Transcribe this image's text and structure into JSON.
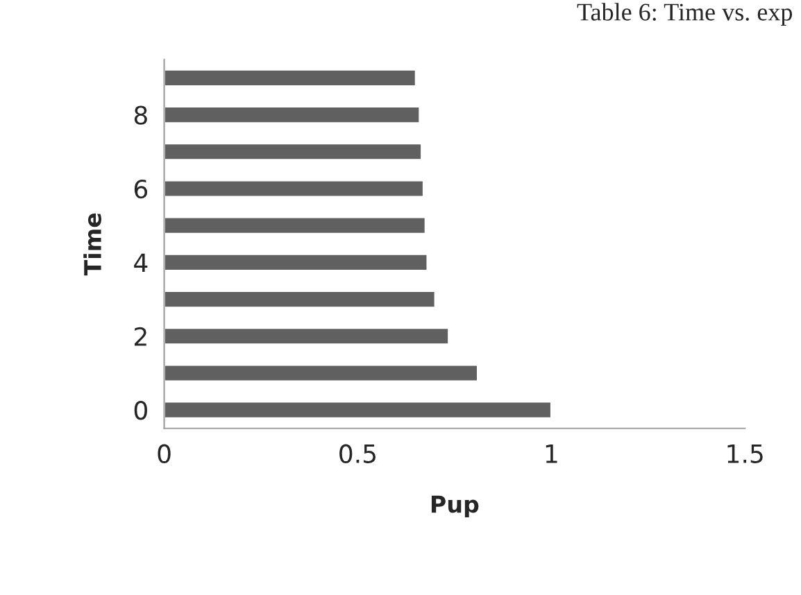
{
  "chart_data": {
    "type": "bar",
    "orientation": "horizontal",
    "title": "Table 6: Time vs. exp",
    "xlabel": "Pup",
    "ylabel": "Time",
    "categories": [
      null,
      "8",
      null,
      "6",
      null,
      "4",
      null,
      "2",
      null,
      "0"
    ],
    "series": [
      {
        "color": "#606060",
        "values": [
          0.65,
          0.66,
          0.665,
          0.67,
          0.675,
          0.68,
          0.7,
          0.735,
          0.81,
          1.0
        ]
      }
    ],
    "xlim": [
      0,
      1.5
    ],
    "xticks": [
      0,
      0.5,
      1,
      1.5
    ],
    "grid": false,
    "legend": false
  }
}
